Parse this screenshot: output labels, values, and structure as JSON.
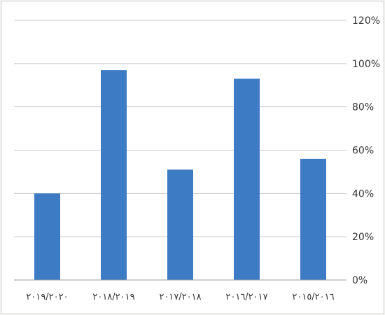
{
  "chart_data": {
    "type": "bar",
    "categories": [
      "٢٠١٩/٢٠٢٠",
      "٢٠١٨/٢٠١٩",
      "٢٠١٧/٢٠١٨",
      "٢٠١٦/٢٠١٧",
      "٢٠١٥/٢٠١٦"
    ],
    "values": [
      40,
      97,
      51,
      93,
      56
    ],
    "unit": "%",
    "ylim": [
      0,
      120
    ],
    "ytick_values": [
      0,
      20,
      40,
      60,
      80,
      100,
      120
    ],
    "ytick_labels": [
      "0%",
      "20%",
      "40%",
      "60%",
      "80%",
      "100%",
      "120%"
    ],
    "y_axis_side": "right",
    "grid": true,
    "bar_color": "#3d7cc4"
  }
}
